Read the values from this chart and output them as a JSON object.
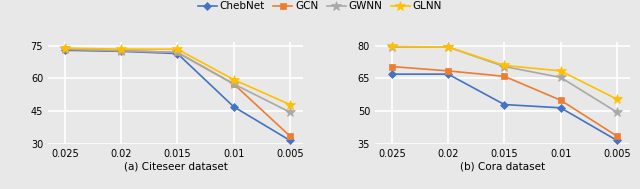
{
  "x": [
    0.025,
    0.02,
    0.015,
    0.01,
    0.005
  ],
  "left_plot": {
    "ChebNet": [
      73.0,
      72.5,
      71.5,
      47.0,
      31.5
    ],
    "GCN": [
      73.5,
      72.8,
      72.0,
      57.5,
      33.5
    ],
    "GWNN": [
      73.5,
      72.8,
      72.0,
      57.5,
      44.5
    ],
    "GLNN": [
      74.0,
      73.5,
      73.5,
      59.5,
      48.0
    ],
    "ylim": [
      30,
      77
    ],
    "yticks": [
      30,
      45,
      60,
      75
    ],
    "subtitle": "(a) Citeseer dataset"
  },
  "right_plot": {
    "ChebNet": [
      67.0,
      67.0,
      53.0,
      51.5,
      36.5
    ],
    "GCN": [
      70.5,
      68.5,
      66.0,
      55.0,
      38.5
    ],
    "GWNN": [
      79.5,
      79.5,
      70.5,
      65.5,
      49.5
    ],
    "GLNN": [
      79.8,
      79.5,
      71.0,
      68.5,
      55.5
    ],
    "ylim": [
      35,
      82
    ],
    "yticks": [
      35,
      50,
      65,
      80
    ],
    "subtitle": "(b) Cora dataset"
  },
  "colors": {
    "ChebNet": "#4472C4",
    "GCN": "#ED7D31",
    "GWNN": "#A9A9A9",
    "GLNN": "#FFC000"
  },
  "markers": {
    "ChebNet": "D",
    "GCN": "s",
    "GWNN": "*",
    "GLNN": "*"
  },
  "markersizes": {
    "ChebNet": 4,
    "GCN": 4,
    "GWNN": 7,
    "GLNN": 7
  },
  "legend_order": [
    "ChebNet",
    "GCN",
    "GWNN",
    "GLNN"
  ],
  "background_color": "#E8E8E8",
  "plot_bg_color": "#E8E8E8",
  "gridcolor": "#FFFFFF",
  "linewidth": 1.2
}
